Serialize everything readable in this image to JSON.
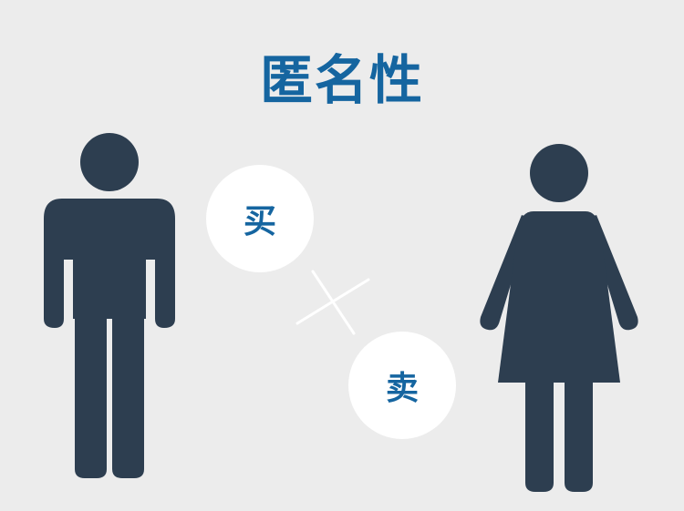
{
  "title": "匿名性",
  "bubbles": {
    "buy": "买",
    "sell": "卖"
  },
  "colors": {
    "background": "#ececec",
    "figure": "#2d3e50",
    "accent": "#1565a0",
    "bubble": "#ffffff"
  },
  "icons": [
    "man-icon",
    "woman-icon",
    "exchange-cross-icon"
  ]
}
